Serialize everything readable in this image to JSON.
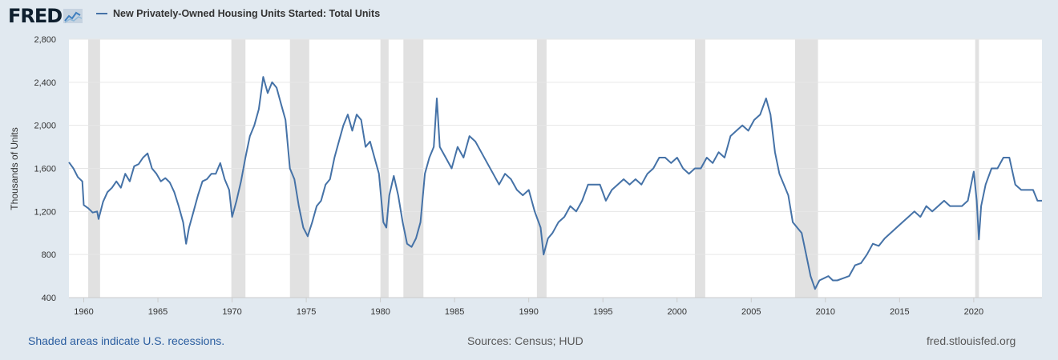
{
  "header": {
    "logo_text": "FRED",
    "logo_icon": "chart-line-icon"
  },
  "chart_data": {
    "type": "line",
    "title": "New Privately-Owned Housing Units Started: Total Units",
    "ylabel": "Thousands of Units",
    "xlabel": "",
    "ylim": [
      400,
      2800
    ],
    "xlim": [
      1959.0,
      2024.6
    ],
    "y_ticks": [
      400,
      800,
      1200,
      1600,
      2000,
      2400,
      2800
    ],
    "y_tick_labels": [
      "400",
      "800",
      "1,200",
      "1,600",
      "2,000",
      "2,400",
      "2,800"
    ],
    "x_ticks": [
      1960,
      1965,
      1970,
      1975,
      1980,
      1985,
      1990,
      1995,
      2000,
      2005,
      2010,
      2015,
      2020
    ],
    "x_tick_labels": [
      "1960",
      "1965",
      "1970",
      "1975",
      "1980",
      "1985",
      "1990",
      "1995",
      "2000",
      "2005",
      "2010",
      "2015",
      "2020"
    ],
    "grid": true,
    "series": [
      {
        "name": "New Privately-Owned Housing Units Started: Total Units",
        "color": "#4572a7",
        "points": [
          [
            1959.0,
            1657
          ],
          [
            1959.3,
            1600
          ],
          [
            1959.6,
            1520
          ],
          [
            1959.9,
            1480
          ],
          [
            1960.0,
            1260
          ],
          [
            1960.3,
            1230
          ],
          [
            1960.6,
            1190
          ],
          [
            1960.9,
            1200
          ],
          [
            1961.0,
            1130
          ],
          [
            1961.3,
            1290
          ],
          [
            1961.6,
            1380
          ],
          [
            1961.9,
            1420
          ],
          [
            1962.2,
            1480
          ],
          [
            1962.5,
            1420
          ],
          [
            1962.8,
            1550
          ],
          [
            1963.1,
            1480
          ],
          [
            1963.4,
            1620
          ],
          [
            1963.7,
            1640
          ],
          [
            1964.0,
            1700
          ],
          [
            1964.3,
            1740
          ],
          [
            1964.6,
            1600
          ],
          [
            1964.9,
            1550
          ],
          [
            1965.2,
            1480
          ],
          [
            1965.5,
            1510
          ],
          [
            1965.8,
            1470
          ],
          [
            1966.1,
            1380
          ],
          [
            1966.4,
            1250
          ],
          [
            1966.7,
            1100
          ],
          [
            1966.9,
            900
          ],
          [
            1967.1,
            1050
          ],
          [
            1967.4,
            1200
          ],
          [
            1967.7,
            1350
          ],
          [
            1968.0,
            1480
          ],
          [
            1968.3,
            1500
          ],
          [
            1968.6,
            1550
          ],
          [
            1968.9,
            1550
          ],
          [
            1969.2,
            1650
          ],
          [
            1969.5,
            1500
          ],
          [
            1969.8,
            1400
          ],
          [
            1970.0,
            1150
          ],
          [
            1970.3,
            1300
          ],
          [
            1970.6,
            1480
          ],
          [
            1970.9,
            1700
          ],
          [
            1971.2,
            1900
          ],
          [
            1971.5,
            2000
          ],
          [
            1971.8,
            2150
          ],
          [
            1972.1,
            2450
          ],
          [
            1972.4,
            2300
          ],
          [
            1972.7,
            2400
          ],
          [
            1973.0,
            2350
          ],
          [
            1973.3,
            2200
          ],
          [
            1973.6,
            2050
          ],
          [
            1973.9,
            1600
          ],
          [
            1974.2,
            1500
          ],
          [
            1974.5,
            1250
          ],
          [
            1974.8,
            1050
          ],
          [
            1975.1,
            970
          ],
          [
            1975.4,
            1100
          ],
          [
            1975.7,
            1250
          ],
          [
            1976.0,
            1300
          ],
          [
            1976.3,
            1450
          ],
          [
            1976.6,
            1500
          ],
          [
            1976.9,
            1700
          ],
          [
            1977.2,
            1850
          ],
          [
            1977.5,
            2000
          ],
          [
            1977.8,
            2100
          ],
          [
            1978.1,
            1950
          ],
          [
            1978.4,
            2100
          ],
          [
            1978.7,
            2050
          ],
          [
            1979.0,
            1800
          ],
          [
            1979.3,
            1850
          ],
          [
            1979.6,
            1700
          ],
          [
            1979.9,
            1550
          ],
          [
            1980.2,
            1100
          ],
          [
            1980.4,
            1050
          ],
          [
            1980.6,
            1350
          ],
          [
            1980.9,
            1530
          ],
          [
            1981.2,
            1350
          ],
          [
            1981.5,
            1100
          ],
          [
            1981.8,
            900
          ],
          [
            1982.1,
            870
          ],
          [
            1982.4,
            950
          ],
          [
            1982.7,
            1100
          ],
          [
            1983.0,
            1550
          ],
          [
            1983.3,
            1700
          ],
          [
            1983.6,
            1800
          ],
          [
            1983.8,
            2250
          ],
          [
            1984.0,
            1800
          ],
          [
            1984.4,
            1700
          ],
          [
            1984.8,
            1600
          ],
          [
            1985.2,
            1800
          ],
          [
            1985.6,
            1700
          ],
          [
            1986.0,
            1900
          ],
          [
            1986.4,
            1850
          ],
          [
            1986.8,
            1750
          ],
          [
            1987.2,
            1650
          ],
          [
            1987.6,
            1550
          ],
          [
            1988.0,
            1450
          ],
          [
            1988.4,
            1550
          ],
          [
            1988.8,
            1500
          ],
          [
            1989.2,
            1400
          ],
          [
            1989.6,
            1350
          ],
          [
            1990.0,
            1400
          ],
          [
            1990.4,
            1200
          ],
          [
            1990.8,
            1050
          ],
          [
            1991.0,
            800
          ],
          [
            1991.3,
            950
          ],
          [
            1991.6,
            1000
          ],
          [
            1992.0,
            1100
          ],
          [
            1992.4,
            1150
          ],
          [
            1992.8,
            1250
          ],
          [
            1993.2,
            1200
          ],
          [
            1993.6,
            1300
          ],
          [
            1994.0,
            1450
          ],
          [
            1994.4,
            1450
          ],
          [
            1994.8,
            1450
          ],
          [
            1995.2,
            1300
          ],
          [
            1995.6,
            1400
          ],
          [
            1996.0,
            1450
          ],
          [
            1996.4,
            1500
          ],
          [
            1996.8,
            1450
          ],
          [
            1997.2,
            1500
          ],
          [
            1997.6,
            1450
          ],
          [
            1998.0,
            1550
          ],
          [
            1998.4,
            1600
          ],
          [
            1998.8,
            1700
          ],
          [
            1999.2,
            1700
          ],
          [
            1999.6,
            1650
          ],
          [
            2000.0,
            1700
          ],
          [
            2000.4,
            1600
          ],
          [
            2000.8,
            1550
          ],
          [
            2001.2,
            1600
          ],
          [
            2001.6,
            1600
          ],
          [
            2002.0,
            1700
          ],
          [
            2002.4,
            1650
          ],
          [
            2002.8,
            1750
          ],
          [
            2003.2,
            1700
          ],
          [
            2003.6,
            1900
          ],
          [
            2004.0,
            1950
          ],
          [
            2004.4,
            2000
          ],
          [
            2004.8,
            1950
          ],
          [
            2005.2,
            2050
          ],
          [
            2005.6,
            2100
          ],
          [
            2006.0,
            2250
          ],
          [
            2006.3,
            2100
          ],
          [
            2006.6,
            1750
          ],
          [
            2006.9,
            1550
          ],
          [
            2007.2,
            1450
          ],
          [
            2007.5,
            1350
          ],
          [
            2007.8,
            1100
          ],
          [
            2008.1,
            1050
          ],
          [
            2008.4,
            1000
          ],
          [
            2008.7,
            800
          ],
          [
            2009.0,
            600
          ],
          [
            2009.3,
            480
          ],
          [
            2009.6,
            560
          ],
          [
            2009.9,
            580
          ],
          [
            2010.2,
            600
          ],
          [
            2010.5,
            560
          ],
          [
            2010.8,
            560
          ],
          [
            2011.2,
            580
          ],
          [
            2011.6,
            600
          ],
          [
            2012.0,
            700
          ],
          [
            2012.4,
            720
          ],
          [
            2012.8,
            800
          ],
          [
            2013.2,
            900
          ],
          [
            2013.6,
            880
          ],
          [
            2014.0,
            950
          ],
          [
            2014.4,
            1000
          ],
          [
            2014.8,
            1050
          ],
          [
            2015.2,
            1100
          ],
          [
            2015.6,
            1150
          ],
          [
            2016.0,
            1200
          ],
          [
            2016.4,
            1150
          ],
          [
            2016.8,
            1250
          ],
          [
            2017.2,
            1200
          ],
          [
            2017.6,
            1250
          ],
          [
            2018.0,
            1300
          ],
          [
            2018.4,
            1250
          ],
          [
            2018.8,
            1250
          ],
          [
            2019.2,
            1250
          ],
          [
            2019.6,
            1300
          ],
          [
            2020.0,
            1570
          ],
          [
            2020.2,
            1300
          ],
          [
            2020.35,
            940
          ],
          [
            2020.5,
            1250
          ],
          [
            2020.8,
            1450
          ],
          [
            2021.2,
            1600
          ],
          [
            2021.6,
            1600
          ],
          [
            2022.0,
            1700
          ],
          [
            2022.4,
            1700
          ],
          [
            2022.8,
            1450
          ],
          [
            2023.2,
            1400
          ],
          [
            2023.6,
            1400
          ],
          [
            2024.0,
            1400
          ],
          [
            2024.3,
            1300
          ],
          [
            2024.6,
            1300
          ]
        ]
      }
    ],
    "recessions": [
      [
        1960.3,
        1961.1
      ],
      [
        1969.95,
        1970.9
      ],
      [
        1973.9,
        1975.2
      ],
      [
        1980.0,
        1980.55
      ],
      [
        1981.55,
        1982.9
      ],
      [
        1990.55,
        1991.2
      ],
      [
        2001.2,
        2001.9
      ],
      [
        2007.95,
        2009.5
      ],
      [
        2020.1,
        2020.35
      ]
    ]
  },
  "footer": {
    "recession_note": "Shaded areas indicate U.S. recessions.",
    "sources": "Sources: Census; HUD",
    "site": "fred.stlouisfed.org"
  }
}
